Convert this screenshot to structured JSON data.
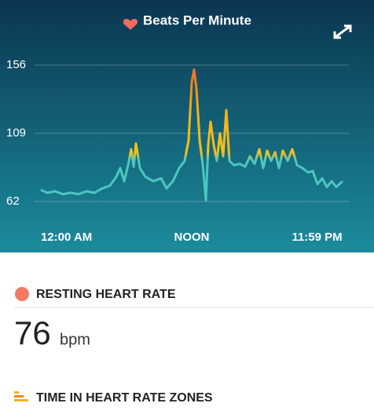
{
  "chart_data": {
    "type": "line",
    "title": "Beats Per Minute",
    "x": [
      0,
      0.5,
      1.13,
      1.75,
      2.38,
      3,
      3.63,
      4.25,
      4.88,
      5.5,
      6,
      6.31,
      6.63,
      6.94,
      7.19,
      7.38,
      7.56,
      7.88,
      8.31,
      8.94,
      9.56,
      10,
      10.5,
      11,
      11.44,
      11.75,
      12,
      12.19,
      12.38,
      12.63,
      12.88,
      13.13,
      13.31,
      13.5,
      13.75,
      14,
      14.25,
      14.5,
      14.75,
      15,
      15.38,
      15.81,
      16.25,
      16.63,
      17,
      17.38,
      17.69,
      18,
      18.31,
      18.63,
      18.94,
      19.25,
      19.63,
      20,
      20.38,
      20.81,
      21.25,
      21.63,
      22,
      22.38,
      22.75,
      23.13,
      23.5,
      24
    ],
    "series": [
      {
        "values": [
          70,
          68,
          69,
          67,
          68,
          67,
          69,
          68,
          71,
          73,
          79,
          85,
          76,
          87,
          98,
          86,
          102,
          85,
          79,
          76,
          78,
          71,
          76,
          85,
          90,
          104,
          144,
          153,
          139,
          104,
          87,
          63,
          101,
          117,
          101,
          90,
          109,
          93,
          125,
          90,
          87,
          88,
          86,
          93,
          88,
          98,
          85,
          97,
          90,
          96,
          85,
          97,
          90,
          98,
          87,
          85,
          82,
          83,
          74,
          78,
          72,
          76,
          72,
          76
        ]
      }
    ],
    "xlim": [
      0,
      24
    ],
    "xticks": [
      {
        "value": 0,
        "label": "12:00 AM"
      },
      {
        "value": 12,
        "label": "NOON"
      },
      {
        "value": 23.98,
        "label": "11:59 PM"
      }
    ],
    "ylim": [
      62,
      156
    ],
    "yticks": [
      62,
      109,
      156
    ],
    "grid": true
  },
  "resting": {
    "title": "RESTING HEART RATE",
    "value": 76,
    "unit": "bpm"
  },
  "zones": {
    "title": "TIME IN HEART RATE ZONES"
  }
}
